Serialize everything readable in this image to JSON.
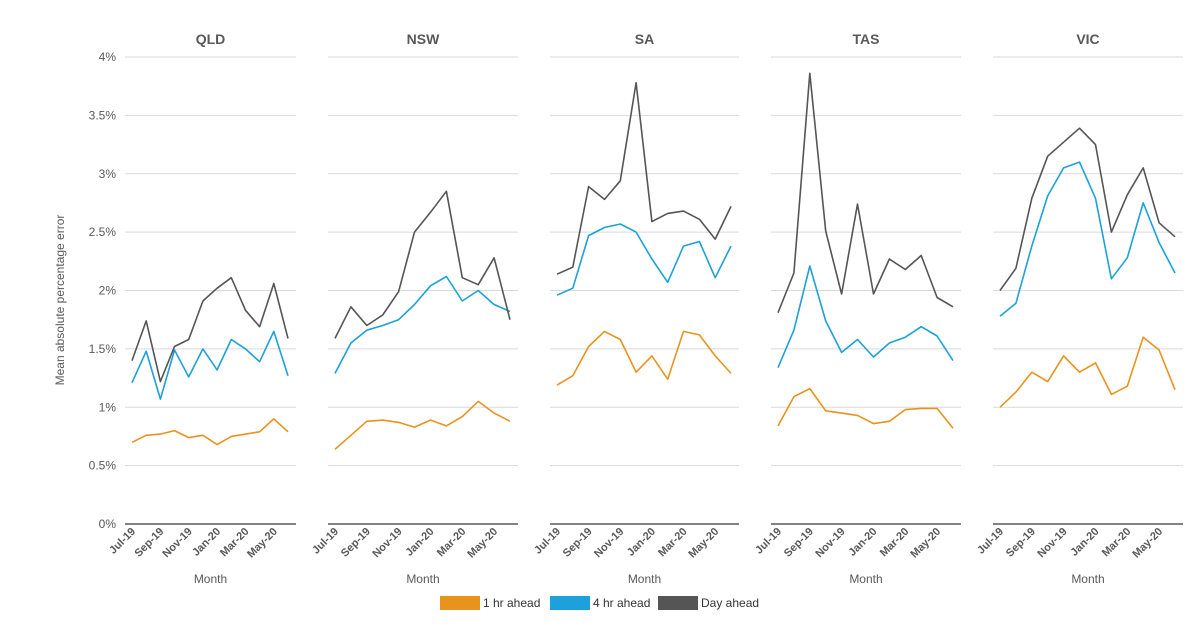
{
  "chart_data": {
    "type": "line",
    "ylabel": "Mean absolute percentage error",
    "xlabel": "Month",
    "ylim": [
      0,
      4
    ],
    "yticks": [
      "0%",
      "0.5%",
      "1%",
      "1.5%",
      "2%",
      "2.5%",
      "3%",
      "3.5%",
      "4%"
    ],
    "x": [
      "Jul-19",
      "Aug-19",
      "Sep-19",
      "Oct-19",
      "Nov-19",
      "Dec-19",
      "Jan-20",
      "Feb-20",
      "Mar-20",
      "Apr-20",
      "May-20",
      "Jun-20"
    ],
    "xtick_labels": [
      "Jul-19",
      "Sep-19",
      "Nov-19",
      "Jan-20",
      "Mar-20",
      "May-20"
    ],
    "grid": true,
    "legend": {
      "placement": "bottom",
      "entries": [
        "1 hr ahead",
        "4 hr ahead",
        "Day ahead"
      ]
    },
    "colors": {
      "1 hr ahead": "#E8931E",
      "4 hr ahead": "#1CA1DA",
      "Day ahead": "#555555"
    },
    "panels": [
      {
        "title": "QLD",
        "series": [
          {
            "name": "1 hr ahead",
            "values": [
              0.7,
              0.76,
              0.77,
              0.8,
              0.74,
              0.76,
              0.68,
              0.75,
              0.77,
              0.79,
              0.9,
              0.79
            ]
          },
          {
            "name": "4 hr ahead",
            "values": [
              1.21,
              1.48,
              1.07,
              1.49,
              1.26,
              1.5,
              1.32,
              1.58,
              1.5,
              1.39,
              1.65,
              1.27
            ]
          },
          {
            "name": "Day ahead",
            "values": [
              1.4,
              1.74,
              1.22,
              1.52,
              1.58,
              1.91,
              2.02,
              2.11,
              1.83,
              1.69,
              2.06,
              1.59
            ]
          }
        ]
      },
      {
        "title": "NSW",
        "series": [
          {
            "name": "1 hr ahead",
            "values": [
              0.64,
              0.76,
              0.88,
              0.89,
              0.87,
              0.83,
              0.89,
              0.84,
              0.92,
              1.05,
              0.95,
              0.88
            ]
          },
          {
            "name": "4 hr ahead",
            "values": [
              1.29,
              1.55,
              1.66,
              1.7,
              1.75,
              1.88,
              2.04,
              2.12,
              1.91,
              2.0,
              1.88,
              1.82
            ]
          },
          {
            "name": "Day ahead",
            "values": [
              1.59,
              1.86,
              1.7,
              1.79,
              1.99,
              2.5,
              2.67,
              2.85,
              2.11,
              2.05,
              2.28,
              1.75
            ]
          }
        ]
      },
      {
        "title": "SA",
        "series": [
          {
            "name": "1 hr ahead",
            "values": [
              1.19,
              1.27,
              1.52,
              1.65,
              1.58,
              1.3,
              1.44,
              1.24,
              1.65,
              1.62,
              1.44,
              1.29
            ]
          },
          {
            "name": "4 hr ahead",
            "values": [
              1.96,
              2.02,
              2.47,
              2.54,
              2.57,
              2.5,
              2.27,
              2.07,
              2.38,
              2.42,
              2.11,
              2.38
            ]
          },
          {
            "name": "Day ahead",
            "values": [
              2.14,
              2.2,
              2.89,
              2.78,
              2.94,
              3.78,
              2.59,
              2.66,
              2.68,
              2.61,
              2.44,
              2.72
            ]
          }
        ]
      },
      {
        "title": "TAS",
        "series": [
          {
            "name": "1 hr ahead",
            "values": [
              0.84,
              1.09,
              1.16,
              0.97,
              0.95,
              0.93,
              0.86,
              0.88,
              0.98,
              0.99,
              0.99,
              0.82
            ]
          },
          {
            "name": "4 hr ahead",
            "values": [
              1.34,
              1.66,
              2.21,
              1.74,
              1.47,
              1.58,
              1.43,
              1.55,
              1.6,
              1.69,
              1.61,
              1.4
            ]
          },
          {
            "name": "Day ahead",
            "values": [
              1.81,
              2.15,
              3.86,
              2.51,
              1.97,
              2.74,
              1.97,
              2.27,
              2.18,
              2.3,
              1.94,
              1.86
            ]
          }
        ]
      },
      {
        "title": "VIC",
        "series": [
          {
            "name": "1 hr ahead",
            "values": [
              1.0,
              1.13,
              1.3,
              1.22,
              1.44,
              1.3,
              1.38,
              1.11,
              1.18,
              1.6,
              1.49,
              1.15
            ]
          },
          {
            "name": "4 hr ahead",
            "values": [
              1.78,
              1.89,
              2.38,
              2.81,
              3.05,
              3.1,
              2.79,
              2.1,
              2.28,
              2.75,
              2.41,
              2.15
            ]
          },
          {
            "name": "Day ahead",
            "values": [
              2.0,
              2.19,
              2.79,
              3.15,
              3.27,
              3.39,
              3.25,
              2.5,
              2.82,
              3.05,
              2.58,
              2.46
            ]
          }
        ]
      }
    ]
  }
}
